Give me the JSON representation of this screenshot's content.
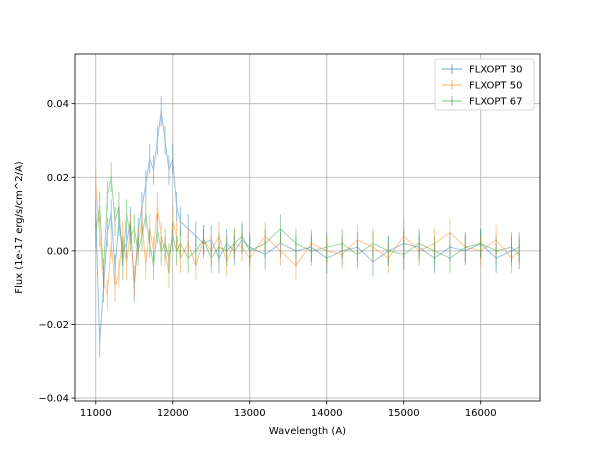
{
  "chart_data": {
    "type": "line",
    "xlabel": "Wavelength (A)",
    "ylabel": "Flux (1e-17 erg/s/cm^2/A)",
    "xlim": [
      10730,
      16770
    ],
    "ylim": [
      -0.0408,
      0.0535
    ],
    "xticks": [
      11000,
      12000,
      13000,
      14000,
      15000,
      16000
    ],
    "xtick_labels": [
      "11000",
      "12000",
      "13000",
      "14000",
      "15000",
      "16000"
    ],
    "yticks": [
      -0.04,
      -0.02,
      0.0,
      0.02,
      0.04
    ],
    "ytick_labels": [
      "−0.04",
      "−0.02",
      "0.00",
      "0.02",
      "0.04"
    ],
    "grid": true,
    "legend_position": "top-right",
    "colors": {
      "FLXOPT 30": "#1f77b4",
      "FLXOPT 50": "#ff7f0e",
      "FLXOPT 67": "#2ca02c"
    },
    "series": [
      {
        "name": "FLXOPT 30",
        "x": [
          11000,
          11050,
          11100,
          11150,
          11200,
          11250,
          11300,
          11350,
          11400,
          11450,
          11500,
          11550,
          11600,
          11650,
          11700,
          11750,
          11800,
          11850,
          11900,
          11950,
          12000,
          12050,
          12100,
          12200,
          12300,
          12400,
          12500,
          12600,
          12700,
          12800,
          12900,
          13000,
          13200,
          13400,
          13600,
          13800,
          14000,
          14200,
          14400,
          14600,
          14800,
          15000,
          15200,
          15400,
          15600,
          15800,
          16000,
          16200,
          16400,
          16500
        ],
        "y": [
          0.01,
          -0.025,
          -0.01,
          0.005,
          0.01,
          -0.005,
          0.008,
          0.0,
          0.002,
          0.008,
          -0.01,
          0.005,
          0.012,
          0.018,
          0.025,
          0.022,
          0.03,
          0.038,
          0.03,
          0.022,
          0.025,
          0.012,
          0.008,
          0.006,
          0.004,
          0.002,
          0.003,
          -0.002,
          0.002,
          0.0,
          0.003,
          0.001,
          -0.001,
          0.002,
          0.0,
          0.001,
          -0.002,
          0.0,
          0.001,
          -0.003,
          0.0,
          0.002,
          0.001,
          -0.002,
          0.001,
          0.0,
          0.002,
          -0.002,
          0.0,
          0.001
        ],
        "yerr": 0.004
      },
      {
        "name": "FLXOPT 50",
        "x": [
          11000,
          11050,
          11100,
          11150,
          11200,
          11250,
          11300,
          11350,
          11400,
          11450,
          11500,
          11550,
          11600,
          11650,
          11700,
          11750,
          11800,
          11850,
          11900,
          11950,
          12000,
          12050,
          12100,
          12200,
          12300,
          12400,
          12500,
          12600,
          12700,
          12800,
          12900,
          13000,
          13200,
          13400,
          13600,
          13800,
          14000,
          14200,
          14400,
          14600,
          14800,
          15000,
          15200,
          15400,
          15600,
          15800,
          16000,
          16200,
          16400,
          16500
        ],
        "y": [
          0.018,
          0.005,
          -0.008,
          -0.012,
          0.002,
          -0.01,
          -0.006,
          0.004,
          -0.004,
          0.006,
          -0.008,
          0.002,
          0.008,
          -0.004,
          0.006,
          0.0,
          0.012,
          0.004,
          0.0,
          -0.006,
          0.008,
          0.004,
          -0.002,
          0.002,
          -0.004,
          0.003,
          0.0,
          0.004,
          -0.003,
          0.002,
          0.001,
          -0.002,
          0.004,
          0.0,
          -0.004,
          0.002,
          0.0,
          -0.001,
          0.003,
          0.001,
          -0.002,
          0.004,
          0.0,
          0.002,
          0.005,
          0.001,
          0.0,
          0.003,
          -0.002,
          0.0
        ],
        "yerr": 0.004
      },
      {
        "name": "FLXOPT 67",
        "x": [
          11000,
          11050,
          11100,
          11150,
          11200,
          11250,
          11300,
          11350,
          11400,
          11450,
          11500,
          11550,
          11600,
          11650,
          11700,
          11750,
          11800,
          11850,
          11900,
          11950,
          12000,
          12050,
          12100,
          12200,
          12300,
          12400,
          12500,
          12600,
          12700,
          12800,
          12900,
          13000,
          13200,
          13400,
          13600,
          13800,
          14000,
          14200,
          14400,
          14600,
          14800,
          15000,
          15200,
          15400,
          15600,
          15800,
          16000,
          16200,
          16400,
          16500
        ],
        "y": [
          0.005,
          0.012,
          -0.006,
          0.015,
          0.02,
          0.008,
          0.012,
          -0.004,
          0.01,
          0.004,
          0.006,
          0.0,
          0.004,
          0.01,
          0.002,
          -0.004,
          0.006,
          0.0,
          0.002,
          -0.002,
          0.004,
          0.0,
          0.002,
          -0.002,
          0.0,
          0.003,
          -0.002,
          0.001,
          0.0,
          0.002,
          0.004,
          0.0,
          0.002,
          0.006,
          0.002,
          0.0,
          0.001,
          0.002,
          -0.001,
          0.002,
          0.0,
          -0.001,
          0.002,
          0.0,
          -0.002,
          0.001,
          0.002,
          0.0,
          0.001,
          -0.001
        ],
        "yerr": 0.004
      }
    ]
  }
}
